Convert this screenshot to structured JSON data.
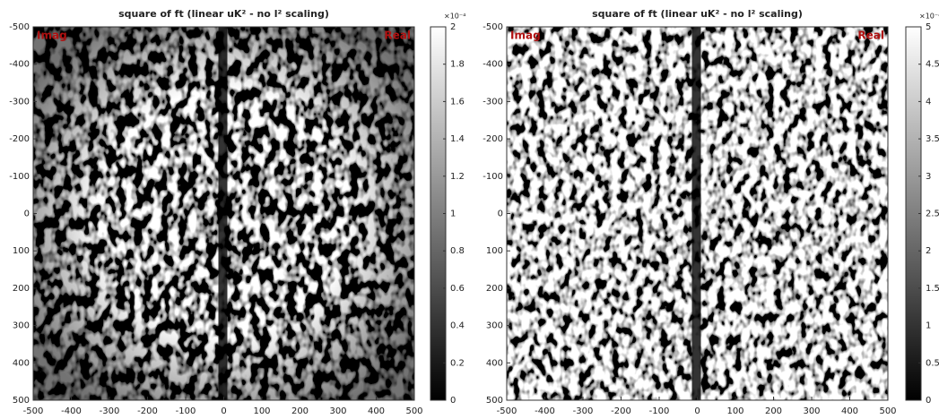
{
  "chart_data": [
    {
      "type": "heatmap",
      "title": "square of ft (linear uK² - no l² scaling)",
      "annotations": [
        "Imag",
        "Real"
      ],
      "xlim": [
        -500,
        500
      ],
      "xticks": [
        -500,
        -400,
        -300,
        -200,
        -100,
        0,
        100,
        200,
        300,
        400,
        500
      ],
      "ylim": [
        -500,
        500
      ],
      "y_reversed": true,
      "yticks": [
        -500,
        -400,
        -300,
        -200,
        -100,
        0,
        100,
        200,
        300,
        400,
        500
      ],
      "colorbar": {
        "lim": [
          0,
          2
        ],
        "ticks": [
          0,
          0.2,
          0.4,
          0.6,
          0.8,
          1,
          1.2,
          1.4,
          1.6,
          1.8,
          2
        ],
        "exponent_label": "×10⁻⁴"
      },
      "colormap": "gray"
    },
    {
      "type": "heatmap",
      "title": "square of ft (linear uK² - no l² scaling)",
      "annotations": [
        "Imag",
        "Real"
      ],
      "xlim": [
        -500,
        500
      ],
      "xticks": [
        -500,
        -400,
        -300,
        -200,
        -100,
        0,
        100,
        200,
        300,
        400,
        500
      ],
      "ylim": [
        -500,
        500
      ],
      "y_reversed": true,
      "yticks": [
        -500,
        -400,
        -300,
        -200,
        -100,
        0,
        100,
        200,
        300,
        400,
        500
      ],
      "colorbar": {
        "lim": [
          0,
          5
        ],
        "ticks": [
          0,
          0.5,
          1,
          1.5,
          2,
          2.5,
          3,
          3.5,
          4,
          4.5,
          5
        ],
        "exponent_label": "×10⁻⁴"
      },
      "colormap": "gray"
    }
  ]
}
